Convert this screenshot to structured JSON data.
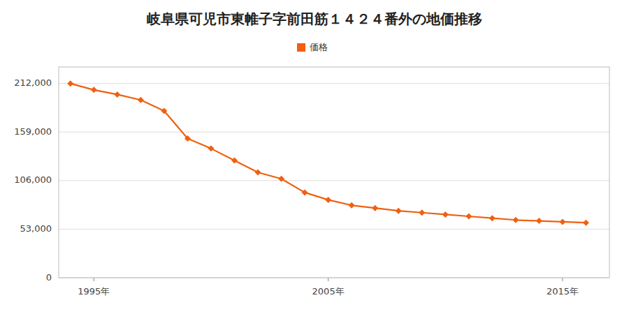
{
  "chart_data": {
    "type": "line",
    "title": "岐阜県可児市東帷子字前田筋１４２４番外の地価推移",
    "x": [
      1994,
      1995,
      1996,
      1997,
      1998,
      1999,
      2000,
      2001,
      2002,
      2003,
      2004,
      2005,
      2006,
      2007,
      2008,
      2009,
      2010,
      2011,
      2012,
      2013,
      2014,
      2015,
      2016
    ],
    "series": [
      {
        "name": "価格",
        "color": "#F06010",
        "marker": "diamond",
        "values": [
          212000,
          205000,
          200000,
          194000,
          182000,
          152000,
          141000,
          128000,
          115000,
          108000,
          93000,
          85000,
          79000,
          76000,
          73000,
          71000,
          69000,
          67000,
          65000,
          63000,
          62000,
          61000,
          60000
        ]
      }
    ],
    "xlim": [
      1993.5,
      2017
    ],
    "xticks": [
      {
        "value": 1995,
        "label": "1995年"
      },
      {
        "value": 2005,
        "label": "2005年"
      },
      {
        "value": 2015,
        "label": "2015年"
      }
    ],
    "ylim": [
      0,
      230000
    ],
    "yticks": [
      0,
      {
        "value": 53000,
        "label": "53,000"
      },
      {
        "value": 106000,
        "label": "106,000"
      },
      {
        "value": 159000,
        "label": "159,000"
      },
      {
        "value": 212000,
        "label": "212,000"
      }
    ],
    "grid": "y",
    "legend": "top"
  }
}
